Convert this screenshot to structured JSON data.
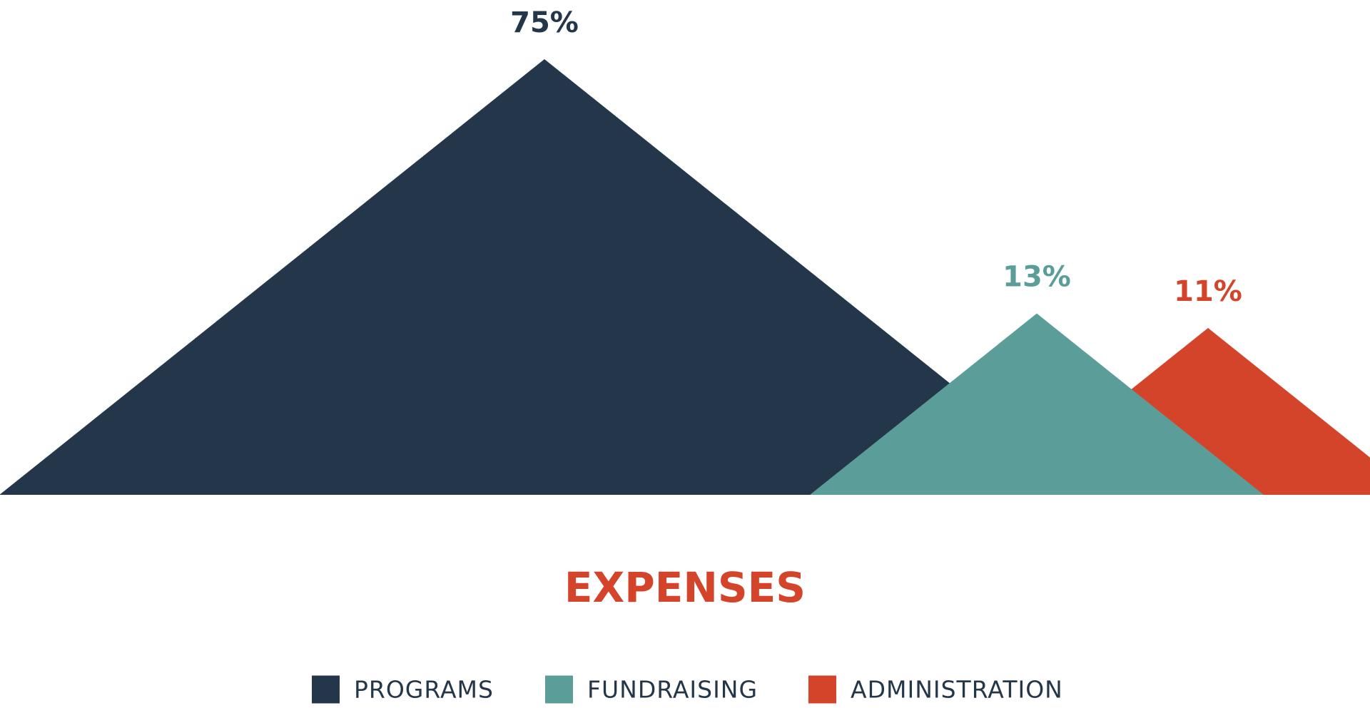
{
  "chart_data": {
    "type": "triangle",
    "title": "EXPENSES",
    "title_color": "#d4442a",
    "categories": [
      "PROGRAMS",
      "FUNDRAISING",
      "ADMINISTRATION"
    ],
    "values": [
      75,
      13,
      11
    ],
    "value_labels": [
      "75%",
      "13%",
      "11%"
    ],
    "colors": [
      "#243649",
      "#5b9e99",
      "#d4442a"
    ],
    "legend": "bottom"
  }
}
